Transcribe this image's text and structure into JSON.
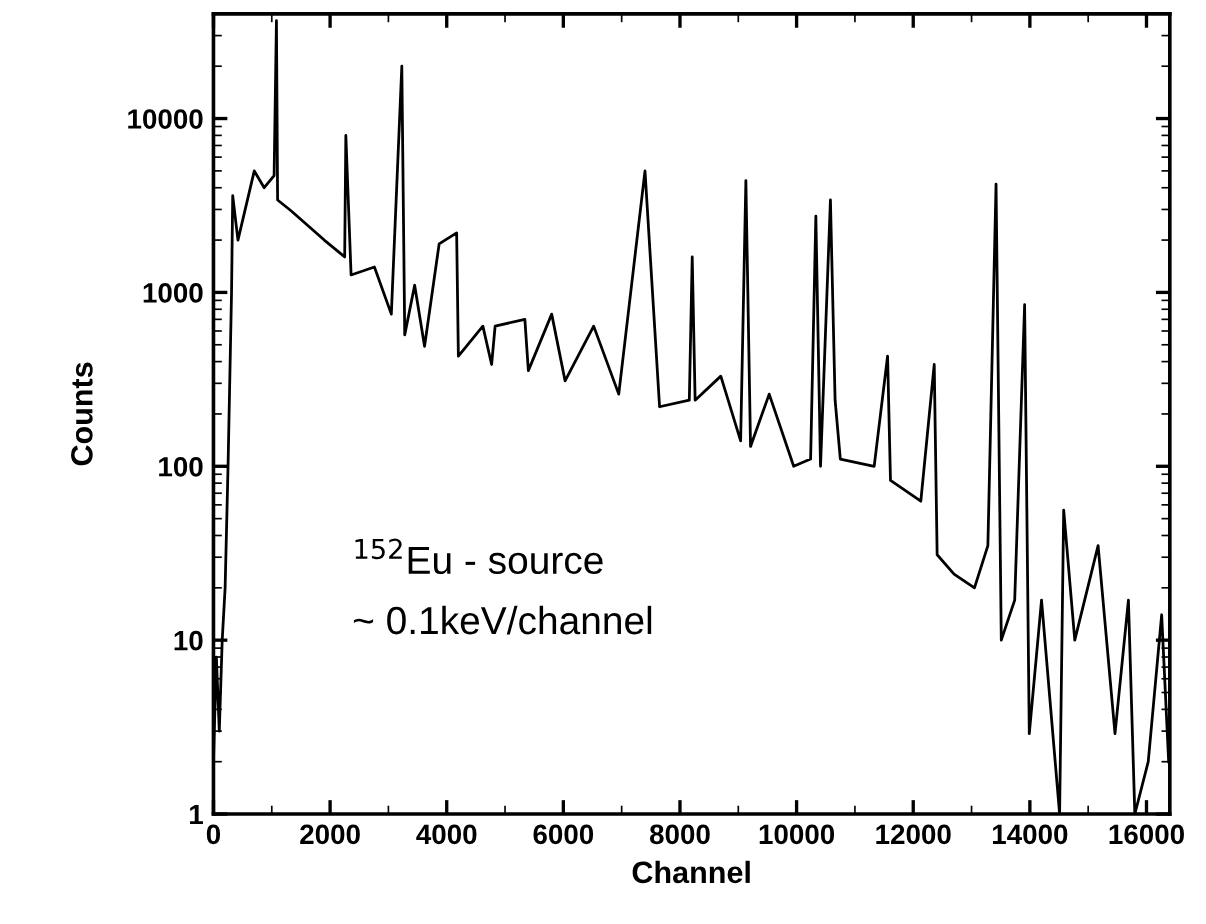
{
  "chart_data": {
    "type": "line",
    "xlabel": "Channel",
    "ylabel": "Counts",
    "annotations": [
      "$^{152}$Eu - source",
      "~ 0.1keV/channel"
    ],
    "series": [
      {
        "color": "#000000",
        "x": [
          0,
          50,
          100,
          150,
          200,
          250,
          310,
          330,
          420,
          700,
          870,
          1040,
          1080,
          1100,
          1330,
          1900,
          2250,
          2270,
          2360,
          2760,
          3050,
          3230,
          3280,
          3450,
          3620,
          3870,
          4170,
          4200,
          4620,
          4770,
          4830,
          5340,
          5400,
          5800,
          6030,
          6520,
          6950,
          7400,
          7650,
          8160,
          8210,
          8260,
          8700,
          9040,
          9130,
          9210,
          9530,
          9950,
          10240,
          10330,
          10410,
          10580,
          10660,
          10750,
          11330,
          11560,
          11610,
          12130,
          12360,
          12410,
          12700,
          13050,
          13280,
          13420,
          13510,
          13740,
          13910,
          13990,
          14200,
          14510,
          14580,
          14770,
          15170,
          15460,
          15690,
          15800,
          16030,
          16260,
          16380
        ],
        "values": [
          2,
          8,
          3,
          10,
          20,
          100,
          1000,
          3600,
          2000,
          5000,
          4000,
          4700,
          36600,
          3400,
          2950,
          2000,
          1600,
          8000,
          1260,
          1400,
          750,
          20000,
          570,
          1100,
          490,
          1900,
          2200,
          430,
          640,
          385,
          640,
          700,
          355,
          750,
          310,
          640,
          260,
          5000,
          220,
          240,
          1600,
          240,
          330,
          140,
          4400,
          130,
          260,
          100,
          110,
          2750,
          100,
          3400,
          240,
          110,
          100,
          430,
          83,
          63,
          385,
          31,
          24,
          20,
          35,
          4200,
          10,
          17,
          850,
          2.9,
          17,
          1,
          56,
          10,
          35,
          2.9,
          17,
          1,
          2,
          14,
          2
        ]
      }
    ],
    "xlim": [
      0,
      16400
    ],
    "xticks": [
      0,
      2000,
      4000,
      6000,
      8000,
      10000,
      12000,
      14000,
      16000
    ],
    "log": "y",
    "ylim": [
      1,
      40000
    ],
    "yticks": [
      1,
      10,
      100,
      1000,
      10000
    ],
    "line_style": "solid",
    "marker": "none",
    "grid": false,
    "legend": false
  }
}
